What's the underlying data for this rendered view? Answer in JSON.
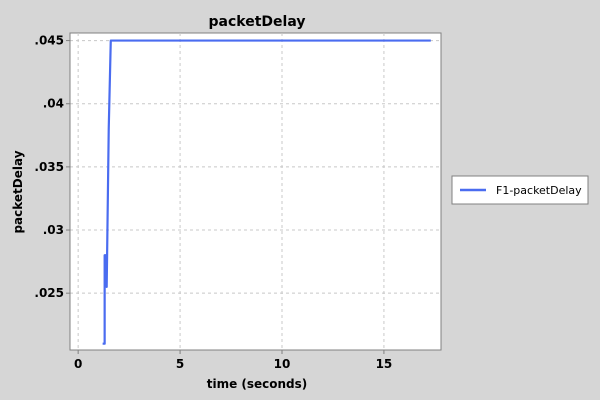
{
  "chart_data": {
    "type": "line",
    "title": "packetDelay",
    "xlabel": "time (seconds)",
    "ylabel": "packetDelay",
    "xlim": [
      -0.4,
      17.8
    ],
    "ylim": [
      0.0205,
      0.0456
    ],
    "x_ticks": [
      0,
      5,
      10,
      15
    ],
    "x_tick_labels": [
      "0",
      "5",
      "10",
      "15"
    ],
    "y_ticks": [
      0.025,
      0.03,
      0.035,
      0.04,
      0.045
    ],
    "y_tick_labels": [
      ".025",
      ".03",
      ".035",
      ".04",
      ".045"
    ],
    "grid": true,
    "legend_position": "right",
    "series": [
      {
        "name": "F1-packetDelay",
        "color": "#4a6cf0",
        "x": [
          1.2,
          1.3,
          1.3,
          1.4,
          1.4,
          1.5,
          1.6,
          2.0,
          3.0,
          4.0,
          5.0,
          6.0,
          7.0,
          8.0,
          9.0,
          10.0,
          11.0,
          12.0,
          13.0,
          14.0,
          15.0,
          16.0,
          17.3
        ],
        "y": [
          0.021,
          0.021,
          0.028,
          0.028,
          0.0255,
          0.038,
          0.045,
          0.045,
          0.045,
          0.045,
          0.045,
          0.045,
          0.045,
          0.045,
          0.045,
          0.045,
          0.045,
          0.045,
          0.045,
          0.045,
          0.045,
          0.045,
          0.045
        ]
      }
    ]
  }
}
